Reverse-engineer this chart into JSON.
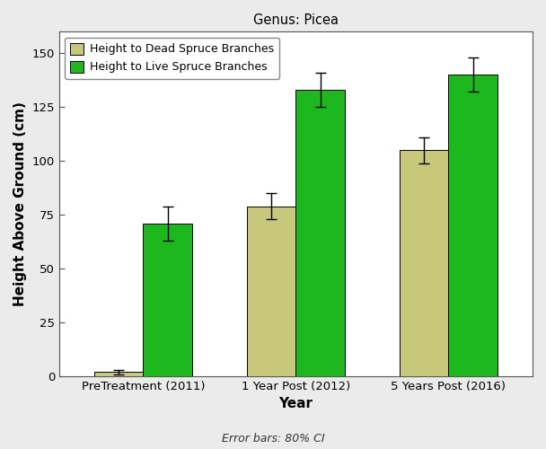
{
  "title": "Genus: Picea",
  "xlabel": "Year",
  "ylabel": "Height Above Ground (cm)",
  "categories": [
    "PreTreatment (2011)",
    "1 Year Post (2012)",
    "5 Years Post (2016)"
  ],
  "dead_values": [
    2,
    79,
    105
  ],
  "live_values": [
    71,
    133,
    140
  ],
  "dead_errors": [
    1,
    6,
    6
  ],
  "live_errors": [
    8,
    8,
    8
  ],
  "dead_color": "#C8C87A",
  "live_color": "#1DB81D",
  "ylim": [
    0,
    160
  ],
  "yticks": [
    0,
    25,
    50,
    75,
    100,
    125,
    150
  ],
  "legend_dead": "Height to Dead Spruce Branches",
  "legend_live": "Height to Live Spruce Branches",
  "footnote": "Error bars: 80% CI",
  "bar_width": 0.32,
  "figure_facecolor": "#EBEBEB",
  "axes_facecolor": "#FFFFFF",
  "edge_color": "#000000"
}
